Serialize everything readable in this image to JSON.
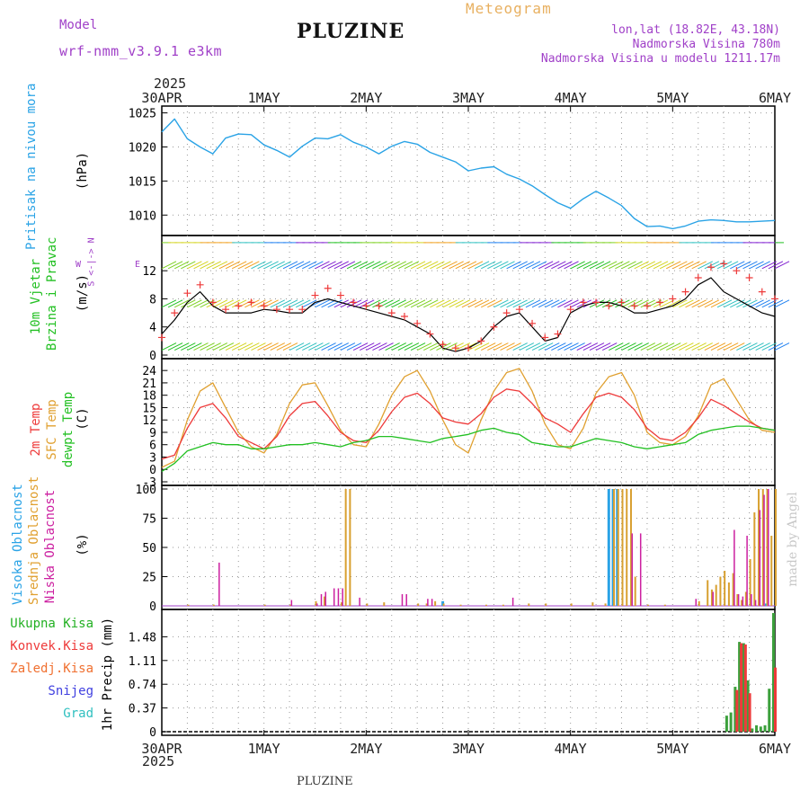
{
  "header": {
    "model_label": "Model",
    "model_name": "wrf-nmm_v3.9.1  e3km",
    "station": "PLUZINE",
    "product": "Meteogram",
    "lonlat": "lon,lat (18.82E, 43.18N)",
    "elevation": "Nadmorska Visina 780m",
    "model_elevation": "Nadmorska Visina u modelu 1211.17m",
    "credit": "made by Angel"
  },
  "colors": {
    "pressure": "#2aa3e6",
    "t2m": "#ee3a3a",
    "sfc": "#e0a030",
    "dewpt": "#22c022",
    "wind_line": "#000000",
    "wind_marker": "#ee3a3a",
    "high_cloud": "#2aa3e6",
    "mid_cloud": "#d8a030",
    "low_cloud": "#cc1fa0",
    "total_precip": "#3ca03c",
    "conv_precip": "#ee3a3a",
    "purple": "#a040c8"
  },
  "time_axis": {
    "top_year": "2025",
    "bottom_year": "2025",
    "labels": [
      "30APR",
      "1MAY",
      "2MAY",
      "3MAY",
      "4MAY",
      "5MAY",
      "6MAY"
    ],
    "footer": "PLUZINE"
  },
  "direction_legend": {
    "w": "W",
    "e": "E",
    "n": "N",
    "s": "S",
    "arrows": "<-|->"
  },
  "chart_data": [
    {
      "type": "line",
      "title": "Pritisak na nivou mora",
      "ylabel": "(hPa)",
      "ylim": [
        1007,
        1026
      ],
      "yticks": [
        "1025",
        "1020",
        "1015",
        "1010"
      ],
      "x_hours": [
        0,
        3,
        6,
        9,
        12,
        15,
        18,
        21,
        24,
        27,
        30,
        33,
        36,
        39,
        42,
        45,
        48,
        51,
        54,
        57,
        60,
        63,
        66,
        69,
        72,
        75,
        78,
        81,
        84,
        87,
        90,
        93,
        96,
        99,
        102,
        105,
        108,
        111,
        114,
        117,
        120,
        123,
        126,
        129,
        132,
        135,
        138,
        141,
        144
      ],
      "series": [
        {
          "name": "pressure",
          "values": [
            1022.2,
            1024.1,
            1021.2,
            1020.0,
            1019.0,
            1021.3,
            1021.9,
            1021.8,
            1020.3,
            1019.5,
            1018.5,
            1020.1,
            1021.3,
            1021.2,
            1021.8,
            1020.7,
            1020.0,
            1019.0,
            1020.1,
            1020.8,
            1020.4,
            1019.2,
            1018.5,
            1017.8,
            1016.5,
            1016.9,
            1017.1,
            1016.0,
            1015.3,
            1014.3,
            1013.0,
            1011.8,
            1011.0,
            1012.4,
            1013.5,
            1012.5,
            1011.4,
            1009.5,
            1008.3,
            1008.4,
            1008.0,
            1008.4,
            1009.1,
            1009.3,
            1009.2,
            1009.0,
            1009.0,
            1009.1,
            1009.2
          ]
        }
      ]
    },
    {
      "type": "line",
      "title": "10m Vjetar Brzina i Pravac",
      "ylabel": "(m/s)",
      "ylim": [
        0,
        16.5
      ],
      "yticks": [
        "0",
        "4",
        "8",
        "12"
      ],
      "x_hours": [
        0,
        3,
        6,
        9,
        12,
        15,
        18,
        21,
        24,
        27,
        30,
        33,
        36,
        39,
        42,
        45,
        48,
        51,
        54,
        57,
        60,
        63,
        66,
        69,
        72,
        75,
        78,
        81,
        84,
        87,
        90,
        93,
        96,
        99,
        102,
        105,
        108,
        111,
        114,
        117,
        120,
        123,
        126,
        129,
        132,
        135,
        138,
        141,
        144
      ],
      "series": [
        {
          "name": "wind speed",
          "values": [
            3,
            5,
            7.5,
            9,
            7,
            6,
            6,
            6,
            6.5,
            6.3,
            6,
            6,
            7.5,
            8,
            7.5,
            7,
            6.5,
            6,
            5.5,
            5,
            4,
            3,
            1,
            0.5,
            1,
            2,
            4,
            5.5,
            6,
            4,
            2,
            2.5,
            6,
            7,
            7.5,
            7.5,
            7,
            6,
            6,
            6.5,
            7,
            8,
            10,
            11,
            9,
            8,
            7,
            6,
            5.5
          ]
        },
        {
          "name": "wind gust markers",
          "values": [
            2.5,
            6,
            8.8,
            10,
            7.5,
            6.5,
            7,
            7.5,
            7,
            6.5,
            6.5,
            6.5,
            8.5,
            9.5,
            8.5,
            7.5,
            7,
            7,
            6,
            5.5,
            4.5,
            3,
            1.5,
            1,
            1,
            2,
            4,
            6,
            6.5,
            4.5,
            2.5,
            3,
            6.5,
            7.5,
            7.5,
            7,
            7.5,
            7,
            7,
            7.5,
            8,
            9,
            11,
            12.5,
            13,
            12,
            11,
            9,
            8
          ]
        }
      ]
    },
    {
      "type": "line",
      "title": "2m Temp / SFC Temp / dewpt Temp",
      "ylabel": "(C)",
      "ylim": [
        -3,
        26
      ],
      "yticks": [
        "-3",
        "0",
        "3",
        "6",
        "9",
        "12",
        "15",
        "18",
        "21",
        "24"
      ],
      "x_hours": [
        0,
        3,
        6,
        9,
        12,
        15,
        18,
        21,
        24,
        27,
        30,
        33,
        36,
        39,
        42,
        45,
        48,
        51,
        54,
        57,
        60,
        63,
        66,
        69,
        72,
        75,
        78,
        81,
        84,
        87,
        90,
        93,
        96,
        99,
        102,
        105,
        108,
        111,
        114,
        117,
        120,
        123,
        126,
        129,
        132,
        135,
        138,
        141,
        144
      ],
      "series": [
        {
          "name": "2m Temp",
          "values": [
            2.5,
            3.5,
            10,
            15,
            16,
            12.5,
            8,
            6.5,
            5,
            8,
            13,
            16,
            16.5,
            13,
            9,
            7,
            6.5,
            9.5,
            14,
            17.5,
            18.5,
            16,
            12.5,
            11.5,
            11,
            13.5,
            17.5,
            19.5,
            19,
            16,
            12.5,
            11,
            9,
            13.5,
            17.5,
            18.5,
            17.5,
            14.5,
            10,
            7.5,
            7,
            9,
            12.5,
            17,
            15.5,
            13.5,
            11.5,
            10,
            9.5
          ]
        },
        {
          "name": "SFC Temp",
          "values": [
            0.5,
            2,
            12,
            19,
            21,
            15,
            9,
            5.5,
            4,
            8.5,
            16,
            20.5,
            21,
            15.5,
            9.5,
            6,
            5.5,
            11,
            18,
            22.5,
            24,
            19,
            12,
            6,
            4,
            12,
            19,
            23.5,
            24.5,
            19,
            11,
            6,
            5,
            10,
            18.5,
            22.5,
            23.5,
            18,
            9,
            6.5,
            6,
            8,
            13,
            20.5,
            22,
            17,
            12,
            9.5,
            9
          ]
        },
        {
          "name": "dewpt Temp",
          "values": [
            -0.5,
            1.5,
            4.5,
            5.5,
            6.5,
            6,
            6,
            5,
            5,
            5.5,
            6,
            6,
            6.5,
            6,
            5.5,
            6.5,
            7,
            8,
            8,
            7.5,
            7,
            6.5,
            7.5,
            8,
            8.5,
            9.5,
            10,
            9,
            8.5,
            6.5,
            6,
            5.5,
            5.5,
            6.5,
            7.5,
            7,
            6.5,
            5.5,
            5,
            5.5,
            6,
            6.5,
            8.5,
            9.5,
            10,
            10.5,
            10.5,
            10,
            9.5
          ]
        }
      ]
    },
    {
      "type": "bar",
      "title": "Visoka Oblacnost / Srednja Oblacnost / Niska Oblacnost",
      "ylabel": "(%)",
      "ylim": [
        0,
        100
      ],
      "yticks": [
        "0",
        "25",
        "50",
        "75",
        "100"
      ],
      "series": [
        {
          "name": "Visoka Oblacnost",
          "x_hours": [
            66,
            105,
            106,
            107,
            142
          ],
          "values": [
            4,
            100,
            100,
            100,
            2
          ]
        },
        {
          "name": "Srednja Oblacnost",
          "x_hours": [
            6,
            12,
            24,
            30,
            36,
            38,
            42,
            43,
            44,
            48,
            52,
            60,
            62,
            64,
            66,
            70,
            76,
            80,
            86,
            90,
            96,
            101,
            104,
            106,
            107,
            108,
            109,
            110,
            111,
            114,
            118,
            126,
            128,
            129,
            130,
            131,
            132,
            133,
            134,
            135,
            136,
            137,
            138,
            139,
            140,
            141,
            142,
            143,
            144
          ],
          "values": [
            1,
            1,
            1,
            1,
            4,
            8,
            3,
            100,
            100,
            2,
            3,
            2,
            2,
            4,
            2,
            1,
            1,
            1,
            2,
            2,
            2,
            3,
            2,
            100,
            100,
            100,
            100,
            100,
            25,
            1,
            1,
            4,
            22,
            14,
            18,
            25,
            30,
            20,
            28,
            10,
            5,
            12,
            40,
            80,
            100,
            100,
            100,
            60,
            100
          ]
        },
        {
          "name": "Niska Oblacnost",
          "x_hours": [
            13,
            30,
            36,
            37,
            38,
            40,
            41,
            42,
            46,
            56,
            57,
            62,
            63,
            82,
            110,
            112,
            125,
            129,
            134,
            135,
            136,
            137,
            138,
            139,
            140,
            141,
            142
          ],
          "values": [
            37,
            5,
            2,
            10,
            12,
            15,
            15,
            15,
            7,
            10,
            10,
            6,
            6,
            7,
            62,
            62,
            6,
            12,
            65,
            10,
            8,
            60,
            10,
            5,
            82,
            95,
            100
          ]
        }
      ]
    },
    {
      "type": "bar",
      "title": "1hr Precip",
      "ylabel": "1hr Precip (mm)",
      "ylim": [
        0,
        1.85
      ],
      "yticks": [
        "0",
        "0.37",
        "0.74",
        "1.11",
        "1.48"
      ],
      "series": [
        {
          "name": "Ukupna Kisa",
          "x_hours": [
            133,
            134,
            135,
            136,
            137,
            138,
            139,
            140,
            141,
            142,
            143,
            144
          ],
          "values": [
            0.25,
            0.3,
            0.7,
            1.4,
            1.38,
            0.8,
            0.05,
            0.1,
            0.08,
            0.1,
            0.67,
            1.85
          ]
        },
        {
          "name": "Konvek.Kisa",
          "x_hours": [
            135,
            136,
            137,
            138,
            144
          ],
          "values": [
            0.65,
            1.38,
            1.36,
            0.6,
            1.0
          ]
        }
      ],
      "legend": [
        "Ukupna Kisa",
        "Konvek.Kisa",
        "Zaledj.Kisa",
        "Snijeg",
        "Grad"
      ]
    }
  ]
}
